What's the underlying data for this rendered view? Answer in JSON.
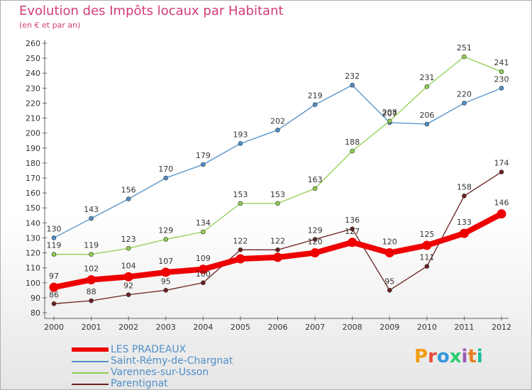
{
  "header": {
    "title": "Evolution des Impôts locaux par Habitant",
    "subtitle": "(en € et par an)"
  },
  "brand": {
    "text": "Proxiti",
    "colors": [
      "#f39c12",
      "#e74c3c",
      "#3498db",
      "#2ecc71",
      "#9b59b6",
      "#e67e22",
      "#1abc9c"
    ]
  },
  "chart_data": {
    "type": "line",
    "title": "Evolution des Impôts locaux par Habitant",
    "subtitle": "(en € et par an)",
    "xlabel": "",
    "ylabel": "",
    "categories": [
      "2000",
      "2001",
      "2002",
      "2003",
      "2004",
      "2005",
      "2006",
      "2007",
      "2008",
      "2009",
      "2010",
      "2011",
      "2012"
    ],
    "ylim": [
      80,
      260
    ],
    "yticks": [
      80,
      90,
      100,
      110,
      120,
      130,
      140,
      150,
      160,
      170,
      180,
      190,
      200,
      210,
      220,
      230,
      240,
      250,
      260
    ],
    "grid": false,
    "legend_position": "bottom-left",
    "series": [
      {
        "name": "LES PRADEAUX",
        "color": "#ee0000",
        "values": [
          97,
          102,
          104,
          107,
          109,
          116,
          117,
          120,
          127,
          120,
          125,
          133,
          146
        ],
        "labels": [
          "97",
          "102",
          "104",
          "107",
          "109",
          "",
          "",
          "120",
          "127",
          "120",
          "125",
          "133",
          "146"
        ]
      },
      {
        "name": "Saint-Rémy-de-Chargnat",
        "color": "#4f8fc9",
        "values": [
          130,
          143,
          156,
          170,
          179,
          193,
          202,
          219,
          232,
          207,
          206,
          220,
          230
        ],
        "labels": [
          "130",
          "143",
          "156",
          "170",
          "179",
          "193",
          "202",
          "219",
          "232",
          "207",
          "206",
          "220",
          "230"
        ]
      },
      {
        "name": "Varennes-sur-Usson",
        "color": "#8fcf4f",
        "values": [
          119,
          119,
          123,
          129,
          134,
          153,
          153,
          163,
          188,
          208,
          231,
          251,
          241
        ],
        "labels": [
          "119",
          "119",
          "123",
          "129",
          "134",
          "153",
          "153",
          "163",
          "188",
          "208",
          "231",
          "251",
          "241"
        ]
      },
      {
        "name": "Parentignat",
        "color": "#6b1f1f",
        "values": [
          86,
          88,
          92,
          95,
          100,
          122,
          122,
          129,
          136,
          95,
          111,
          158,
          174
        ],
        "labels": [
          "86",
          "88",
          "92",
          "95",
          "100",
          "122",
          "122",
          "129",
          "136",
          "95",
          "111",
          "158",
          "174"
        ]
      }
    ]
  }
}
